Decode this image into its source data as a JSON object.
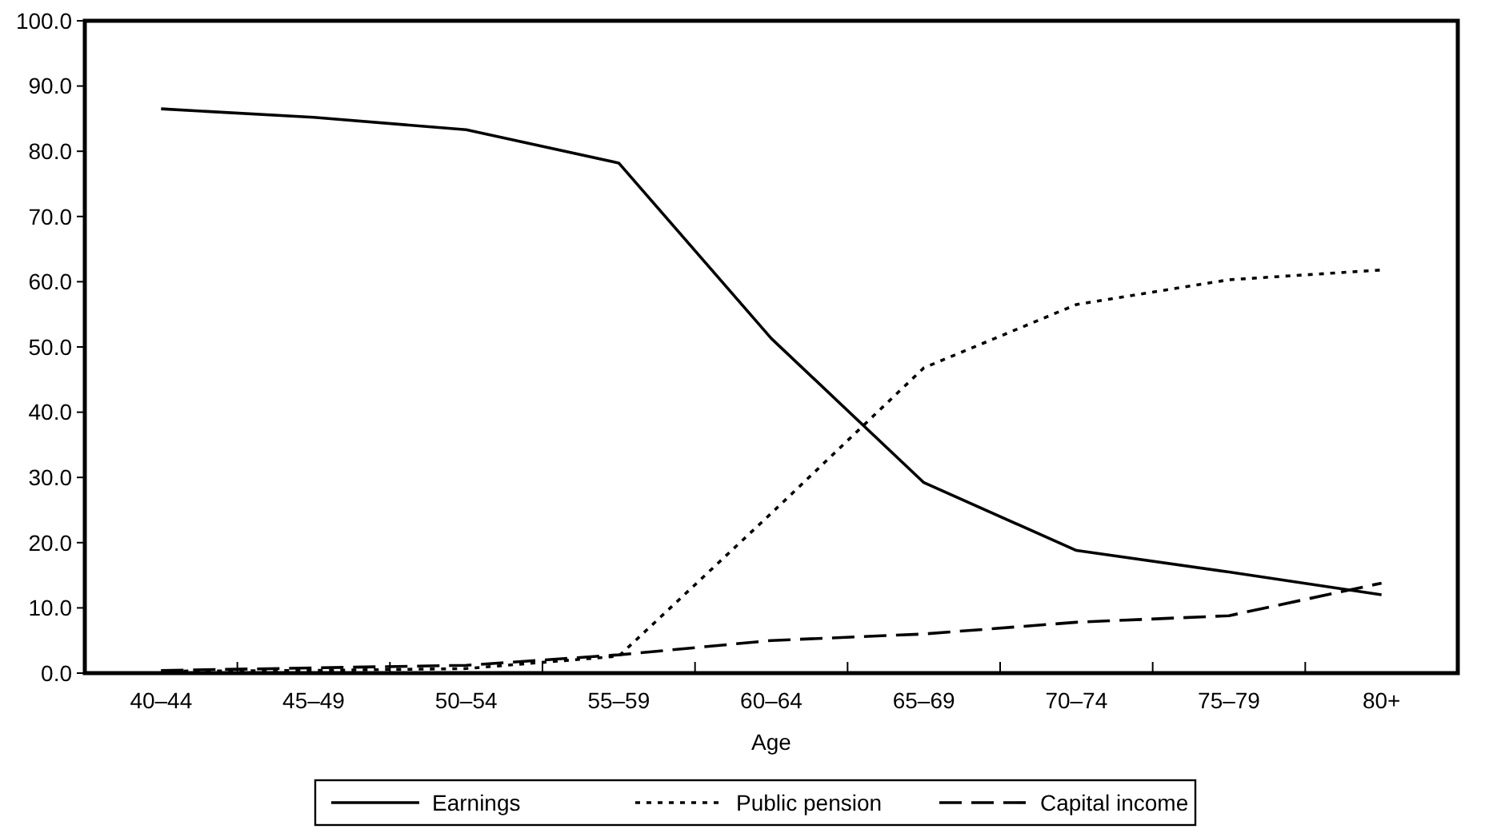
{
  "chart_data": {
    "type": "line",
    "xlabel": "Age",
    "categories": [
      "40–44",
      "45–49",
      "50–54",
      "55–59",
      "60–64",
      "65–69",
      "70–74",
      "75–79",
      "80+"
    ],
    "ylim": [
      0,
      100
    ],
    "yticks": [
      {
        "value": 0,
        "label": "0.0"
      },
      {
        "value": 10,
        "label": "10.0"
      },
      {
        "value": 20,
        "label": "20.0"
      },
      {
        "value": 30,
        "label": "30.0"
      },
      {
        "value": 40,
        "label": "40.0"
      },
      {
        "value": 50,
        "label": "50.0"
      },
      {
        "value": 60,
        "label": "60.0"
      },
      {
        "value": 70,
        "label": "70.0"
      },
      {
        "value": 80,
        "label": "80.0"
      },
      {
        "value": 90,
        "label": "90.0"
      },
      {
        "value": 100,
        "label": "100.0"
      }
    ],
    "grid": false,
    "legend": "bottom",
    "marker": "none",
    "series": [
      {
        "name": "Earnings",
        "color": "#000000",
        "line_style": "solid",
        "values": [
          86.5,
          85.2,
          83.3,
          78.2,
          51.3,
          29.2,
          18.8,
          15.5,
          12.0
        ]
      },
      {
        "name": "Public pension",
        "color": "#000000",
        "line_style": "dotted",
        "values": [
          0.3,
          0.4,
          0.7,
          2.6,
          24.5,
          46.8,
          56.5,
          60.3,
          61.8
        ]
      },
      {
        "name": "Capital income",
        "color": "#000000",
        "line_style": "dashed",
        "values": [
          0.4,
          0.8,
          1.2,
          2.8,
          5.0,
          6.0,
          7.8,
          8.8,
          13.8
        ]
      }
    ]
  }
}
